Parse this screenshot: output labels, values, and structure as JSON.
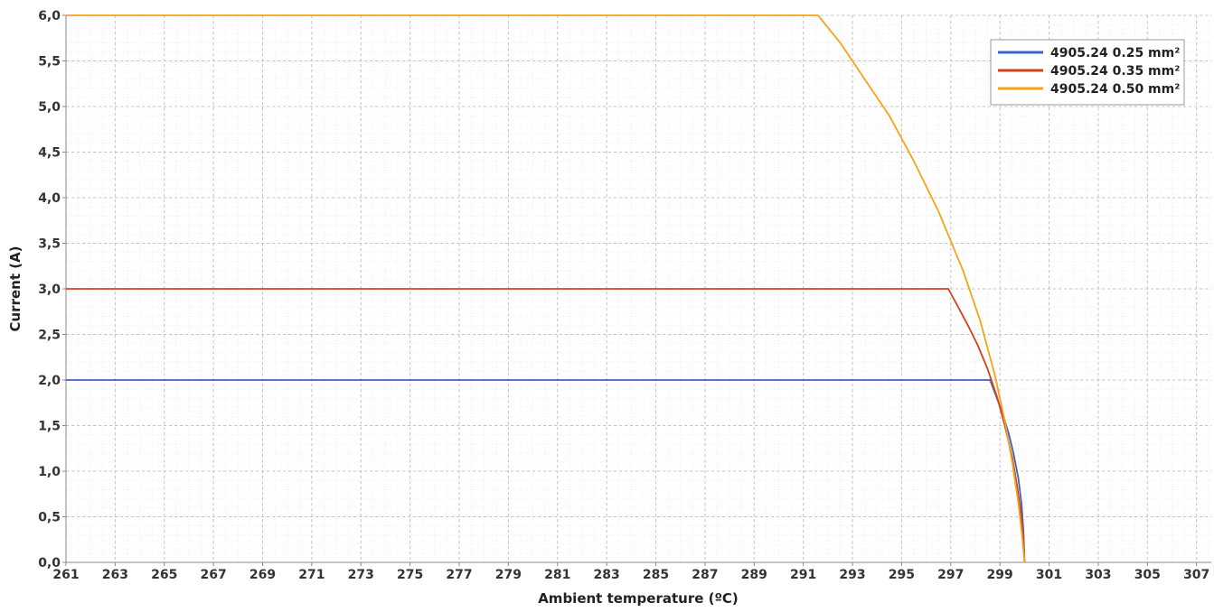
{
  "chart_data": {
    "type": "line",
    "title": "",
    "xlabel": "Ambient temperature (ºC)",
    "ylabel": "Current (A)",
    "xlim": [
      261,
      307.6
    ],
    "ylim": [
      0,
      6
    ],
    "x_ticks": [
      261,
      263,
      265,
      267,
      269,
      271,
      273,
      275,
      277,
      279,
      281,
      283,
      285,
      287,
      289,
      291,
      293,
      295,
      297,
      299,
      301,
      303,
      305,
      307
    ],
    "x_tick_labels": [
      "261",
      "263",
      "265",
      "267",
      "269",
      "271",
      "273",
      "275",
      "277",
      "279",
      "281",
      "283",
      "285",
      "287",
      "289",
      "291",
      "293",
      "295",
      "297",
      "299",
      "301",
      "303",
      "305",
      "307"
    ],
    "y_ticks": [
      0,
      0.5,
      1,
      1.5,
      2,
      2.5,
      3,
      3.5,
      4,
      4.5,
      5,
      5.5,
      6
    ],
    "y_tick_labels": [
      "0,0",
      "0,5",
      "1,0",
      "1,5",
      "2,0",
      "2,5",
      "3,0",
      "3,5",
      "4,0",
      "4,5",
      "5,0",
      "5,5",
      "6,0"
    ],
    "grid": true,
    "legend_position": "top-right",
    "series": [
      {
        "name": "4905.24 0.25 mm²",
        "color": "#3a64c0",
        "x": [
          261,
          298.6,
          298.85,
          299.1,
          299.35,
          299.55,
          299.75,
          299.88,
          299.96,
          300.0
        ],
        "y": [
          2.0,
          2.0,
          1.82,
          1.64,
          1.42,
          1.2,
          0.92,
          0.64,
          0.32,
          0.0
        ]
      },
      {
        "name": "4905.24 0.35 mm²",
        "color": "#d6411a",
        "x": [
          261,
          296.9,
          297.3,
          297.7,
          298.1,
          298.5,
          298.9,
          299.2,
          299.5,
          299.7,
          299.85,
          299.95,
          300.0
        ],
        "y": [
          3.0,
          3.0,
          2.8,
          2.6,
          2.38,
          2.12,
          1.8,
          1.5,
          1.15,
          0.84,
          0.55,
          0.28,
          0.0
        ]
      },
      {
        "name": "4905.24 0.50 mm²",
        "color": "#f5a31a",
        "x": [
          261,
          291.6,
          292.5,
          293.5,
          294.5,
          295.5,
          296.5,
          297.5,
          298.2,
          298.8,
          299.2,
          299.5,
          299.75,
          299.9,
          300.0
        ],
        "y": [
          6.0,
          6.0,
          5.7,
          5.3,
          4.9,
          4.4,
          3.85,
          3.2,
          2.65,
          2.05,
          1.55,
          1.1,
          0.65,
          0.3,
          0.0
        ]
      }
    ]
  }
}
